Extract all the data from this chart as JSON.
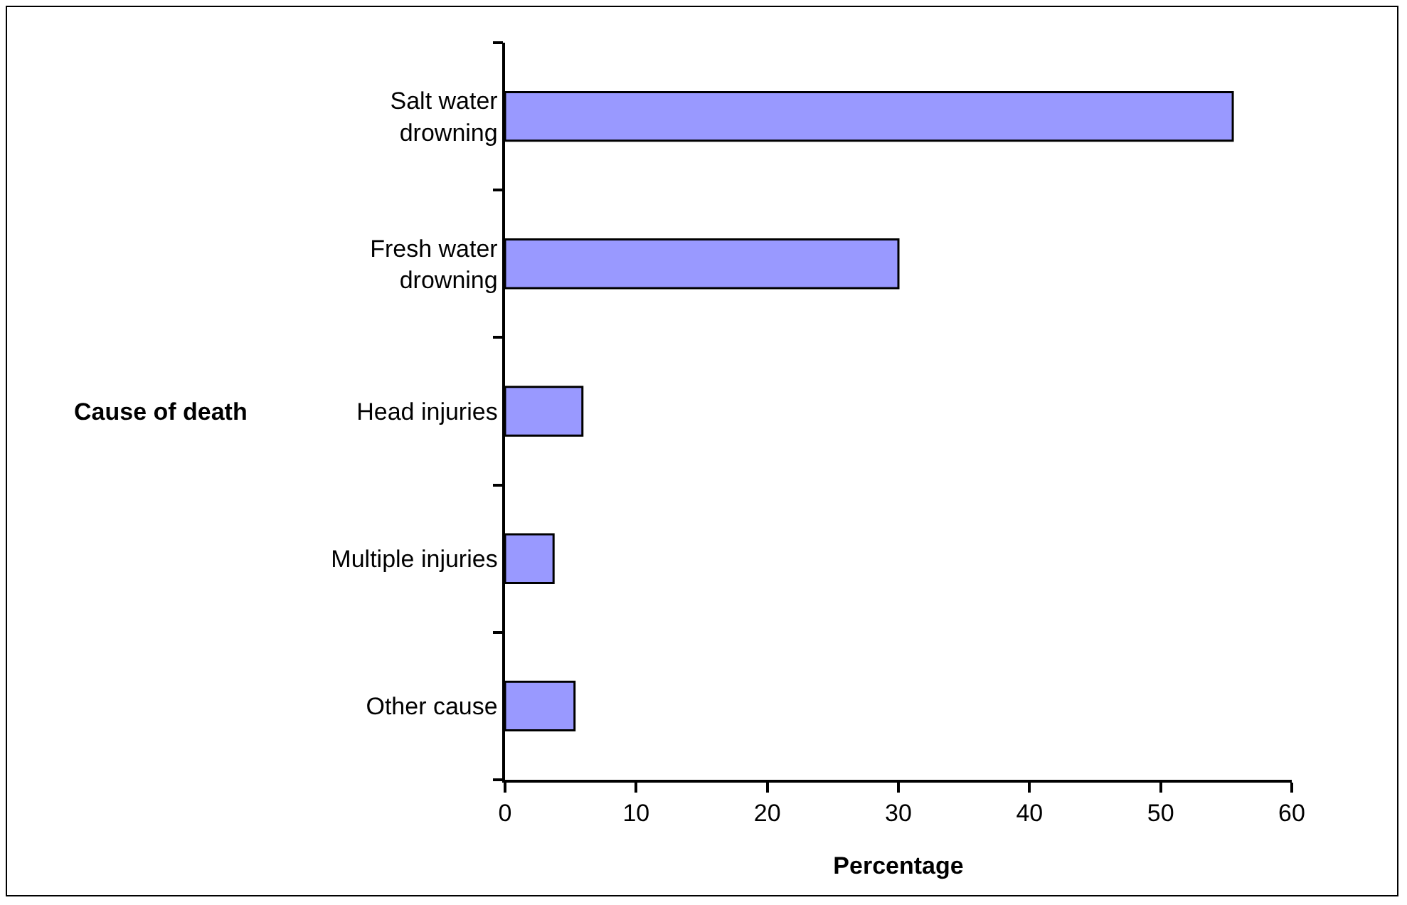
{
  "chart_data": {
    "type": "bar",
    "orientation": "horizontal",
    "categories": [
      "Salt water drowning",
      "Fresh water drowning",
      "Head injuries",
      "Multiple injuries",
      "Other cause"
    ],
    "values": [
      55.5,
      30,
      5.9,
      3.7,
      5.3
    ],
    "color": "#9999ff",
    "xlabel": "Percentage",
    "ylabel": "Cause of death",
    "xlim": [
      0,
      60
    ],
    "xticks": [
      0,
      10,
      20,
      30,
      40,
      50,
      60
    ],
    "grid": false,
    "legend": false
  }
}
